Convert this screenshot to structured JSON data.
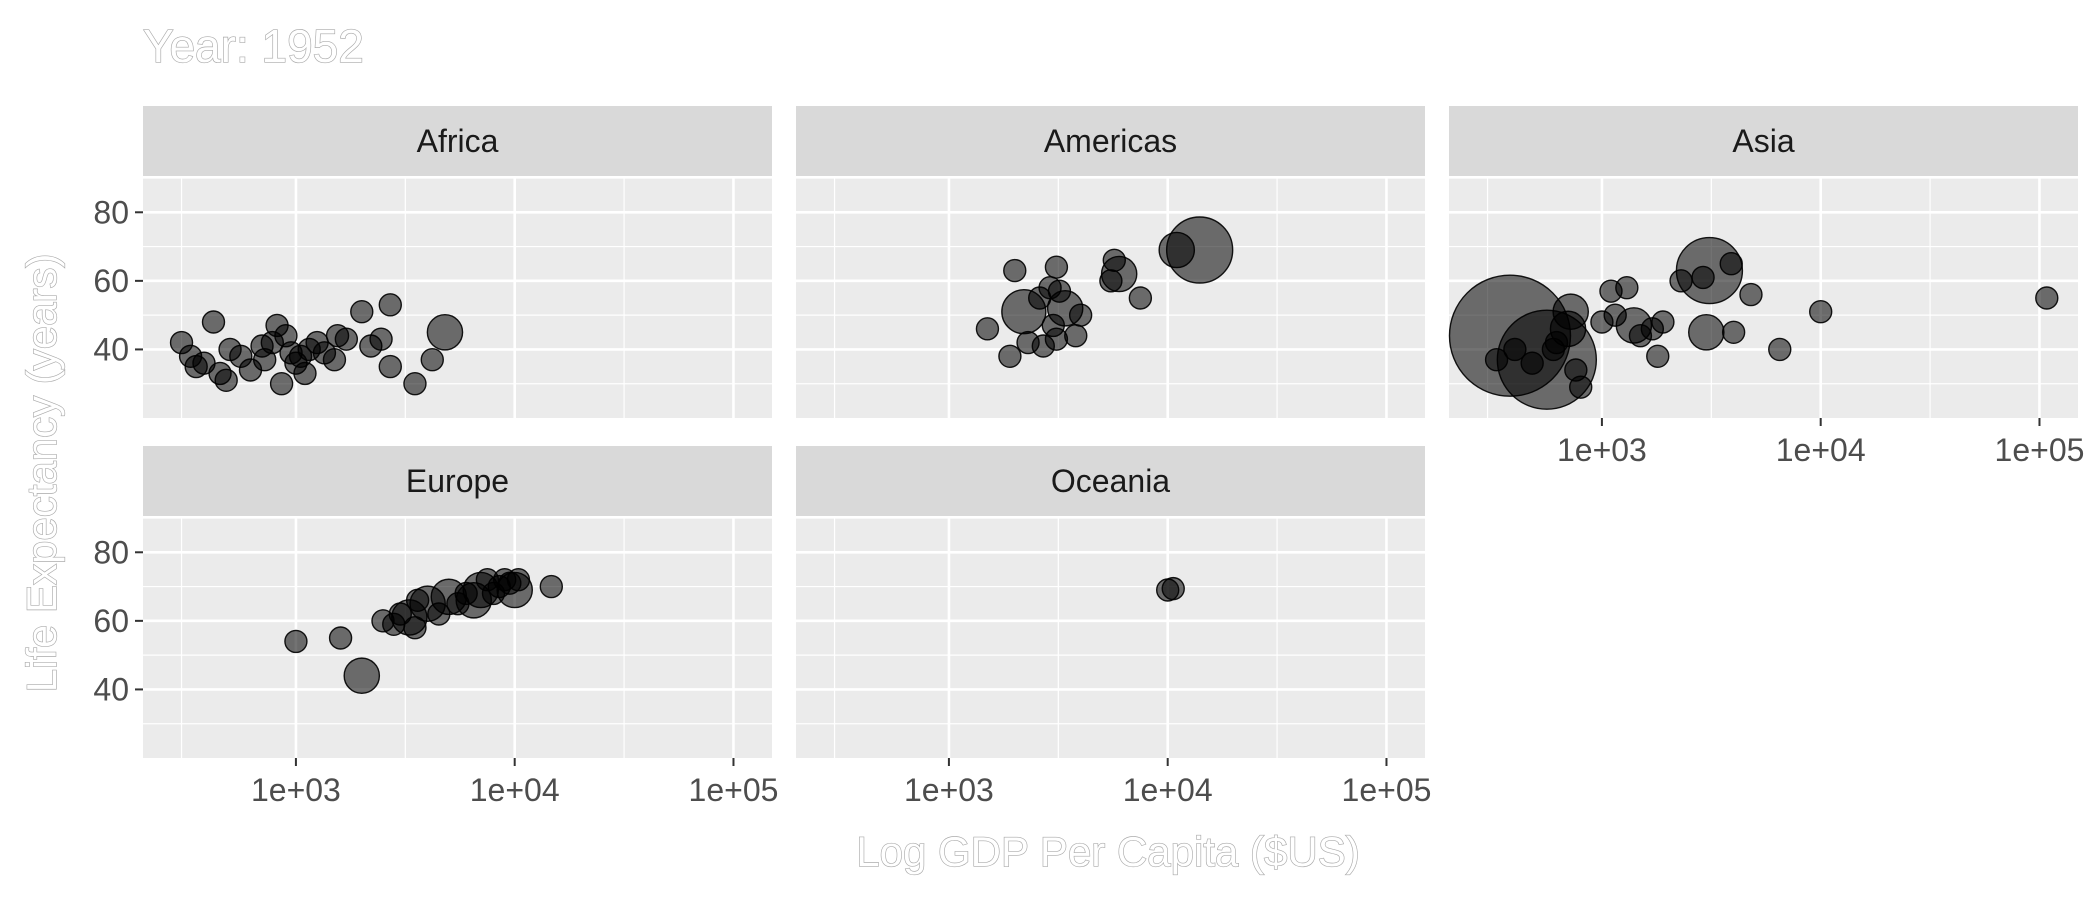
{
  "chart_data": {
    "type": "scatter",
    "title": "Year: 1952",
    "xlabel": "Log GDP Per Capita ($US)",
    "ylabel": "Life Expectancy (years)",
    "x_scale": "log10",
    "xlim": [
      200,
      150000
    ],
    "ylim": [
      20,
      90
    ],
    "x_ticks": [
      1000,
      10000,
      100000
    ],
    "x_tick_labels": [
      "1e+03",
      "1e+04",
      "1e+05"
    ],
    "y_ticks": [
      40,
      60,
      80
    ],
    "y_tick_labels": [
      "40",
      "60",
      "80"
    ],
    "grid": true,
    "point_color": "#000000",
    "panel_background": "#ebebeb",
    "strip_background": "#d9d9d9",
    "facets": [
      {
        "name": "Africa",
        "points": [
          {
            "x": 300,
            "y": 42,
            "size": 1
          },
          {
            "x": 330,
            "y": 38,
            "size": 1
          },
          {
            "x": 350,
            "y": 35,
            "size": 1
          },
          {
            "x": 380,
            "y": 36,
            "size": 1
          },
          {
            "x": 420,
            "y": 48,
            "size": 1
          },
          {
            "x": 450,
            "y": 33,
            "size": 1
          },
          {
            "x": 480,
            "y": 31,
            "size": 1
          },
          {
            "x": 500,
            "y": 40,
            "size": 1
          },
          {
            "x": 560,
            "y": 38,
            "size": 1
          },
          {
            "x": 620,
            "y": 34,
            "size": 1
          },
          {
            "x": 700,
            "y": 41,
            "size": 1
          },
          {
            "x": 720,
            "y": 37,
            "size": 1
          },
          {
            "x": 780,
            "y": 42,
            "size": 1
          },
          {
            "x": 820,
            "y": 47,
            "size": 1
          },
          {
            "x": 860,
            "y": 30,
            "size": 1
          },
          {
            "x": 900,
            "y": 44,
            "size": 1
          },
          {
            "x": 950,
            "y": 39,
            "size": 1
          },
          {
            "x": 1000,
            "y": 36,
            "size": 1
          },
          {
            "x": 1050,
            "y": 38,
            "size": 1
          },
          {
            "x": 1100,
            "y": 33,
            "size": 1
          },
          {
            "x": 1150,
            "y": 40,
            "size": 1
          },
          {
            "x": 1250,
            "y": 42,
            "size": 1
          },
          {
            "x": 1350,
            "y": 39,
            "size": 1
          },
          {
            "x": 1500,
            "y": 37,
            "size": 1
          },
          {
            "x": 1550,
            "y": 44,
            "size": 1
          },
          {
            "x": 1700,
            "y": 43,
            "size": 1
          },
          {
            "x": 2000,
            "y": 51,
            "size": 1
          },
          {
            "x": 2200,
            "y": 41,
            "size": 1
          },
          {
            "x": 2450,
            "y": 43,
            "size": 1
          },
          {
            "x": 2700,
            "y": 53,
            "size": 1
          },
          {
            "x": 2700,
            "y": 35,
            "size": 1
          },
          {
            "x": 3500,
            "y": 30,
            "size": 1
          },
          {
            "x": 4200,
            "y": 37,
            "size": 1
          },
          {
            "x": 4800,
            "y": 45,
            "size": 1.6
          }
        ]
      },
      {
        "name": "Americas",
        "points": [
          {
            "x": 1500,
            "y": 46,
            "size": 1
          },
          {
            "x": 1900,
            "y": 38,
            "size": 1
          },
          {
            "x": 2000,
            "y": 63,
            "size": 1
          },
          {
            "x": 2200,
            "y": 51,
            "size": 2
          },
          {
            "x": 2300,
            "y": 42,
            "size": 1
          },
          {
            "x": 2600,
            "y": 55,
            "size": 1
          },
          {
            "x": 2700,
            "y": 41,
            "size": 1
          },
          {
            "x": 2900,
            "y": 58,
            "size": 1
          },
          {
            "x": 3000,
            "y": 47,
            "size": 1
          },
          {
            "x": 3100,
            "y": 64,
            "size": 1
          },
          {
            "x": 3100,
            "y": 43,
            "size": 1
          },
          {
            "x": 3200,
            "y": 57,
            "size": 1
          },
          {
            "x": 3400,
            "y": 52,
            "size": 1.6
          },
          {
            "x": 3800,
            "y": 44,
            "size": 1
          },
          {
            "x": 4000,
            "y": 50,
            "size": 1
          },
          {
            "x": 5500,
            "y": 60,
            "size": 1
          },
          {
            "x": 5700,
            "y": 66,
            "size": 1
          },
          {
            "x": 6000,
            "y": 62,
            "size": 1.6
          },
          {
            "x": 7500,
            "y": 55,
            "size": 1
          },
          {
            "x": 11000,
            "y": 69,
            "size": 1.6
          },
          {
            "x": 14000,
            "y": 69,
            "size": 3
          }
        ]
      },
      {
        "name": "Asia",
        "points": [
          {
            "x": 380,
            "y": 44,
            "size": 5.5
          },
          {
            "x": 330,
            "y": 37,
            "size": 1
          },
          {
            "x": 400,
            "y": 40,
            "size": 1
          },
          {
            "x": 480,
            "y": 36,
            "size": 1
          },
          {
            "x": 560,
            "y": 37,
            "size": 4.5
          },
          {
            "x": 600,
            "y": 40,
            "size": 1
          },
          {
            "x": 620,
            "y": 42,
            "size": 1
          },
          {
            "x": 700,
            "y": 46,
            "size": 1.6
          },
          {
            "x": 720,
            "y": 51,
            "size": 1.6
          },
          {
            "x": 760,
            "y": 34,
            "size": 1
          },
          {
            "x": 800,
            "y": 29,
            "size": 1
          },
          {
            "x": 1000,
            "y": 48,
            "size": 1
          },
          {
            "x": 1100,
            "y": 57,
            "size": 1
          },
          {
            "x": 1150,
            "y": 50,
            "size": 1
          },
          {
            "x": 1300,
            "y": 58,
            "size": 1
          },
          {
            "x": 1400,
            "y": 47,
            "size": 1.6
          },
          {
            "x": 1500,
            "y": 44,
            "size": 1
          },
          {
            "x": 1700,
            "y": 46,
            "size": 1
          },
          {
            "x": 1800,
            "y": 38,
            "size": 1
          },
          {
            "x": 1900,
            "y": 48,
            "size": 1
          },
          {
            "x": 2300,
            "y": 60,
            "size": 1
          },
          {
            "x": 2900,
            "y": 61,
            "size": 1
          },
          {
            "x": 3000,
            "y": 45,
            "size": 1.6
          },
          {
            "x": 3100,
            "y": 63,
            "size": 3
          },
          {
            "x": 3900,
            "y": 65,
            "size": 1
          },
          {
            "x": 4000,
            "y": 45,
            "size": 1
          },
          {
            "x": 4800,
            "y": 56,
            "size": 1
          },
          {
            "x": 6500,
            "y": 40,
            "size": 1
          },
          {
            "x": 10000,
            "y": 51,
            "size": 1
          },
          {
            "x": 108000,
            "y": 55,
            "size": 1
          }
        ]
      },
      {
        "name": "Europe",
        "points": [
          {
            "x": 1000,
            "y": 54,
            "size": 1
          },
          {
            "x": 1600,
            "y": 55,
            "size": 1
          },
          {
            "x": 2000,
            "y": 44,
            "size": 1.6
          },
          {
            "x": 2500,
            "y": 60,
            "size": 1
          },
          {
            "x": 2800,
            "y": 59,
            "size": 1
          },
          {
            "x": 3000,
            "y": 62,
            "size": 1
          },
          {
            "x": 3300,
            "y": 61,
            "size": 1.6
          },
          {
            "x": 3500,
            "y": 58,
            "size": 1
          },
          {
            "x": 3600,
            "y": 66,
            "size": 1
          },
          {
            "x": 4000,
            "y": 65,
            "size": 1.6
          },
          {
            "x": 4500,
            "y": 62,
            "size": 1
          },
          {
            "x": 5000,
            "y": 67,
            "size": 1.6
          },
          {
            "x": 5500,
            "y": 65,
            "size": 1
          },
          {
            "x": 6000,
            "y": 68,
            "size": 1
          },
          {
            "x": 6500,
            "y": 66,
            "size": 1.6
          },
          {
            "x": 7000,
            "y": 69,
            "size": 1.6
          },
          {
            "x": 7500,
            "y": 72,
            "size": 1
          },
          {
            "x": 8000,
            "y": 68,
            "size": 1
          },
          {
            "x": 8500,
            "y": 70,
            "size": 1
          },
          {
            "x": 9000,
            "y": 72,
            "size": 1
          },
          {
            "x": 9500,
            "y": 71,
            "size": 1
          },
          {
            "x": 10000,
            "y": 69,
            "size": 1.6
          },
          {
            "x": 10400,
            "y": 72,
            "size": 1
          },
          {
            "x": 14700,
            "y": 70,
            "size": 1
          }
        ]
      },
      {
        "name": "Oceania",
        "points": [
          {
            "x": 10000,
            "y": 69,
            "size": 1
          },
          {
            "x": 10600,
            "y": 69.4,
            "size": 1
          }
        ]
      }
    ]
  }
}
